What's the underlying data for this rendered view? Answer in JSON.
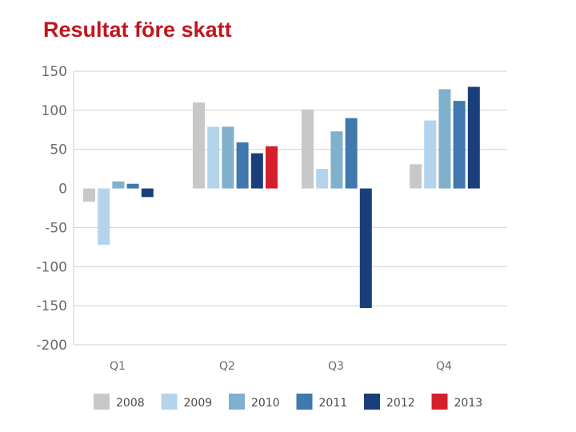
{
  "title": "Resultat före skatt",
  "chart_data": {
    "type": "bar",
    "title": "Resultat före skatt",
    "xlabel": "",
    "ylabel": "",
    "categories": [
      "Q1",
      "Q2",
      "Q3",
      "Q4"
    ],
    "ylim": [
      -200,
      150
    ],
    "yticks": [
      150,
      100,
      50,
      0,
      -50,
      -100,
      -150,
      -200
    ],
    "grid": true,
    "legend_position": "bottom",
    "series": [
      {
        "name": "2008",
        "color": "#c8c8c8",
        "values": [
          -17,
          110,
          101,
          31
        ]
      },
      {
        "name": "2009",
        "color": "#b3d4ec",
        "values": [
          -72,
          79,
          25,
          87
        ]
      },
      {
        "name": "2010",
        "color": "#80b1cc",
        "values": [
          9,
          79,
          73,
          127
        ]
      },
      {
        "name": "2011",
        "color": "#4178ad",
        "values": [
          6,
          59,
          90,
          112
        ]
      },
      {
        "name": "2012",
        "color": "#1a3e7a",
        "values": [
          -11,
          45,
          -153,
          130
        ]
      },
      {
        "name": "2013",
        "color": "#d4202a",
        "values": [
          null,
          54,
          null,
          null
        ]
      }
    ]
  }
}
